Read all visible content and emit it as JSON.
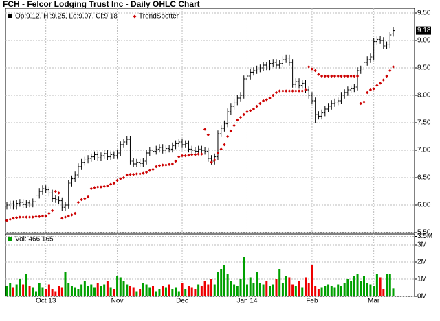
{
  "chart_data": [
    {
      "type": "ohlc",
      "title": "FCH - Felcor Lodging Trust Inc - Daily OHLC Chart",
      "legend": "Op:9.12, Hi:9.25, Lo:9.07, Cl:9.18",
      "color": "#000000",
      "open": [
        5.98,
        6.0,
        6.02,
        5.98,
        6.03,
        6.05,
        6.01,
        6.04,
        6.02,
        6.06,
        6.18,
        6.25,
        6.3,
        6.28,
        6.22,
        6.12,
        6.1,
        6.08,
        5.96,
        6.0,
        6.4,
        6.48,
        6.55,
        6.7,
        6.78,
        6.82,
        6.85,
        6.88,
        6.92,
        6.86,
        6.9,
        6.94,
        6.88,
        6.92,
        6.9,
        6.95,
        7.1,
        7.15,
        7.2,
        6.8,
        6.75,
        6.78,
        6.76,
        6.8,
        6.95,
        7.0,
        6.98,
        7.02,
        7.05,
        7.0,
        7.03,
        7.02,
        7.08,
        7.12,
        7.15,
        7.1,
        7.12,
        7.02,
        7.0,
        6.98,
        7.02,
        7.0,
        6.98,
        6.85,
        6.8,
        6.88,
        7.3,
        7.4,
        7.48,
        7.7,
        7.8,
        7.88,
        7.95,
        8.0,
        8.3,
        8.35,
        8.42,
        8.45,
        8.48,
        8.5,
        8.55,
        8.52,
        8.58,
        8.6,
        8.55,
        8.58,
        8.65,
        8.68,
        8.6,
        8.2,
        8.25,
        8.18,
        8.22,
        8.1,
        8.0,
        7.9,
        7.65,
        7.62,
        7.68,
        7.75,
        7.8,
        7.85,
        7.88,
        7.9,
        8.0,
        8.05,
        8.1,
        8.12,
        8.15,
        8.45,
        8.48,
        8.6,
        8.65,
        8.7,
        8.98,
        9.02,
        9.0,
        8.9,
        8.92,
        9.12
      ],
      "high": [
        6.06,
        6.08,
        6.08,
        6.09,
        6.11,
        6.11,
        6.1,
        6.1,
        6.12,
        6.24,
        6.31,
        6.36,
        6.36,
        6.34,
        6.28,
        6.18,
        6.16,
        6.14,
        6.06,
        6.46,
        6.54,
        6.61,
        6.76,
        6.84,
        6.88,
        6.91,
        6.94,
        6.98,
        6.98,
        6.96,
        7.0,
        7.0,
        6.98,
        6.98,
        7.01,
        7.16,
        7.21,
        7.26,
        7.26,
        6.86,
        6.84,
        6.84,
        6.86,
        7.01,
        7.06,
        7.06,
        7.08,
        7.11,
        7.11,
        7.09,
        7.09,
        7.14,
        7.18,
        7.21,
        7.21,
        7.18,
        7.18,
        7.08,
        7.06,
        7.08,
        7.08,
        7.06,
        7.04,
        6.91,
        6.94,
        7.36,
        7.46,
        7.54,
        7.76,
        7.86,
        7.94,
        8.01,
        8.06,
        8.36,
        8.41,
        8.48,
        8.51,
        8.54,
        8.56,
        8.61,
        8.61,
        8.64,
        8.66,
        8.66,
        8.64,
        8.71,
        8.74,
        8.74,
        8.66,
        8.31,
        8.31,
        8.28,
        8.28,
        8.16,
        8.06,
        7.96,
        7.71,
        7.74,
        7.81,
        7.86,
        7.91,
        7.94,
        7.96,
        8.06,
        8.11,
        8.16,
        8.18,
        8.21,
        8.51,
        8.54,
        8.66,
        8.71,
        8.76,
        9.04,
        9.08,
        9.08,
        9.06,
        8.98,
        9.16,
        9.25
      ],
      "low": [
        5.92,
        5.94,
        5.92,
        5.92,
        5.97,
        5.95,
        5.95,
        5.96,
        5.96,
        6.0,
        6.12,
        6.19,
        6.22,
        6.16,
        6.06,
        6.04,
        6.02,
        5.9,
        5.9,
        5.94,
        6.34,
        6.42,
        6.49,
        6.64,
        6.72,
        6.76,
        6.79,
        6.82,
        6.8,
        6.8,
        6.84,
        6.82,
        6.82,
        6.84,
        6.84,
        6.89,
        7.04,
        7.09,
        6.74,
        6.69,
        6.69,
        6.7,
        6.7,
        6.74,
        6.89,
        6.92,
        6.92,
        6.96,
        6.94,
        6.94,
        6.96,
        6.96,
        7.02,
        7.06,
        7.04,
        7.04,
        6.96,
        6.94,
        6.92,
        6.92,
        6.94,
        6.92,
        6.79,
        6.74,
        6.74,
        6.82,
        7.24,
        7.34,
        7.42,
        7.64,
        7.74,
        7.82,
        7.89,
        7.94,
        8.24,
        8.29,
        8.36,
        8.39,
        8.42,
        8.44,
        8.46,
        8.46,
        8.52,
        8.49,
        8.49,
        8.52,
        8.59,
        8.54,
        8.14,
        8.14,
        8.12,
        8.12,
        8.04,
        7.94,
        7.84,
        7.5,
        7.56,
        7.56,
        7.62,
        7.69,
        7.74,
        7.79,
        7.82,
        7.84,
        7.94,
        7.99,
        8.04,
        8.06,
        8.09,
        8.39,
        8.42,
        8.54,
        8.59,
        8.64,
        8.92,
        8.94,
        8.84,
        8.84,
        8.86,
        9.07
      ],
      "close": [
        6.0,
        6.02,
        5.98,
        6.03,
        6.05,
        6.01,
        6.04,
        6.02,
        6.06,
        6.18,
        6.25,
        6.3,
        6.28,
        6.22,
        6.12,
        6.1,
        6.08,
        5.96,
        6.0,
        6.4,
        6.48,
        6.55,
        6.7,
        6.78,
        6.82,
        6.85,
        6.88,
        6.92,
        6.86,
        6.9,
        6.94,
        6.88,
        6.92,
        6.9,
        6.95,
        7.1,
        7.15,
        7.2,
        6.8,
        6.75,
        6.78,
        6.76,
        6.8,
        6.95,
        7.0,
        6.98,
        7.02,
        7.05,
        7.0,
        7.03,
        7.02,
        7.08,
        7.12,
        7.15,
        7.1,
        7.12,
        7.02,
        7.0,
        6.98,
        7.02,
        7.0,
        6.98,
        6.85,
        6.8,
        6.88,
        7.3,
        7.4,
        7.48,
        7.7,
        7.8,
        7.88,
        7.95,
        8.0,
        8.3,
        8.35,
        8.42,
        8.45,
        8.48,
        8.5,
        8.55,
        8.52,
        8.58,
        8.6,
        8.55,
        8.58,
        8.65,
        8.68,
        8.6,
        8.2,
        8.25,
        8.18,
        8.22,
        8.1,
        8.0,
        7.9,
        7.65,
        7.62,
        7.68,
        7.75,
        7.8,
        7.85,
        7.88,
        7.9,
        8.0,
        8.05,
        8.1,
        8.12,
        8.15,
        8.45,
        8.48,
        8.6,
        8.65,
        8.7,
        8.98,
        9.02,
        9.0,
        8.9,
        8.92,
        9.1,
        9.18
      ],
      "trendspotter": {
        "name": "TrendSpotter",
        "color": "#cc0000",
        "values": [
          5.72,
          5.74,
          5.76,
          5.77,
          5.78,
          5.78,
          5.78,
          5.78,
          5.78,
          5.79,
          5.79,
          5.8,
          5.8,
          5.85,
          5.9,
          6.25,
          6.22,
          5.76,
          5.78,
          5.8,
          5.82,
          5.85,
          6.05,
          6.1,
          6.12,
          6.15,
          6.3,
          6.32,
          6.33,
          6.33,
          6.34,
          6.35,
          6.38,
          6.4,
          6.45,
          6.48,
          6.5,
          6.55,
          6.56,
          6.56,
          6.57,
          6.57,
          6.58,
          6.6,
          6.63,
          6.65,
          6.7,
          6.72,
          6.73,
          6.73,
          6.74,
          6.75,
          6.8,
          6.88,
          6.9,
          6.9,
          6.91,
          6.92,
          6.92,
          6.93,
          6.93,
          7.38,
          7.28,
          6.78,
          6.82,
          6.95,
          7.02,
          7.1,
          7.25,
          7.35,
          7.45,
          7.55,
          7.6,
          7.65,
          7.7,
          7.72,
          7.75,
          7.8,
          7.85,
          7.9,
          7.92,
          7.95,
          8.0,
          8.05,
          8.08,
          8.08,
          8.08,
          8.08,
          8.08,
          8.08,
          8.08,
          8.08,
          8.1,
          8.52,
          8.48,
          8.45,
          8.38,
          8.35,
          8.35,
          8.35,
          8.35,
          8.35,
          8.35,
          8.35,
          8.35,
          8.35,
          8.35,
          8.35,
          8.35,
          7.85,
          7.88,
          8.05,
          8.1,
          8.12,
          8.18,
          8.22,
          8.28,
          8.35,
          8.45,
          8.52
        ]
      },
      "ylim": [
        5.5,
        9.5
      ],
      "yticks": [
        {
          "value": 5.5,
          "label": "5.50"
        },
        {
          "value": 6,
          "label": "6.00"
        },
        {
          "value": 6.5,
          "label": "6.50"
        },
        {
          "value": 7,
          "label": "7.00"
        },
        {
          "value": 7.5,
          "label": "7.50"
        },
        {
          "value": 8,
          "label": "8.00"
        },
        {
          "value": 8.5,
          "label": "8.50"
        },
        {
          "value": 9,
          "label": "9.00"
        },
        {
          "value": 9.5,
          "label": "9.50"
        }
      ],
      "grid": true
    },
    {
      "type": "bar",
      "legend": "Vol: 466,165",
      "up_color": "#00a000",
      "down_color": "#ee0000",
      "categories": [
        null,
        null,
        null,
        null,
        null,
        null,
        null,
        null,
        null,
        null,
        null,
        null,
        "Oct 13",
        null,
        null,
        null,
        null,
        null,
        null,
        null,
        null,
        null,
        null,
        null,
        null,
        null,
        null,
        null,
        null,
        null,
        null,
        null,
        null,
        null,
        "Nov",
        null,
        null,
        null,
        null,
        null,
        null,
        null,
        null,
        null,
        null,
        null,
        null,
        null,
        null,
        null,
        null,
        null,
        null,
        null,
        "Dec",
        null,
        null,
        null,
        null,
        null,
        null,
        null,
        null,
        null,
        null,
        null,
        null,
        null,
        null,
        null,
        null,
        null,
        null,
        null,
        "Jan 14",
        null,
        null,
        null,
        null,
        null,
        null,
        null,
        null,
        null,
        null,
        null,
        null,
        null,
        null,
        null,
        null,
        null,
        null,
        null,
        "Feb",
        null,
        null,
        null,
        null,
        null,
        null,
        null,
        null,
        null,
        null,
        null,
        null,
        null,
        null,
        null,
        null,
        null,
        null,
        "Mar",
        null,
        null,
        null,
        null,
        null,
        null
      ],
      "values": [
        600000,
        800000,
        500000,
        700000,
        1000000,
        700000,
        1300000,
        600000,
        500000,
        300000,
        800000,
        500000,
        400000,
        700000,
        400000,
        300000,
        600000,
        500000,
        1400000,
        800000,
        600000,
        500000,
        400000,
        700000,
        900000,
        600000,
        700000,
        500000,
        800000,
        600000,
        700000,
        900000,
        500000,
        400000,
        1200000,
        1100000,
        900000,
        700000,
        600000,
        500000,
        300000,
        400000,
        800000,
        700000,
        500000,
        600000,
        300000,
        400000,
        600000,
        500000,
        700000,
        400000,
        500000,
        300000,
        800000,
        400000,
        600000,
        500000,
        400000,
        700000,
        600000,
        900000,
        700000,
        1000000,
        700000,
        1400000,
        1600000,
        1800000,
        1300000,
        900000,
        700000,
        600000,
        1000000,
        2300000,
        700000,
        1100000,
        800000,
        1400000,
        800000,
        700000,
        900000,
        600000,
        700000,
        1000000,
        1600000,
        800000,
        1200000,
        1100000,
        700000,
        600000,
        900000,
        500000,
        1100000,
        800000,
        1800000,
        600000,
        400000,
        500000,
        600000,
        700000,
        600000,
        500000,
        700000,
        600000,
        800000,
        1000000,
        900000,
        1200000,
        1300000,
        900000,
        1200000,
        800000,
        700000,
        600000,
        1300000,
        1100000,
        400000,
        1300000,
        1300000,
        466165
      ],
      "ylim": [
        0,
        3500000
      ],
      "yticks": [
        {
          "value": 0,
          "label": "0M"
        },
        {
          "value": 1000000,
          "label": "1M"
        },
        {
          "value": 2000000,
          "label": "2M"
        },
        {
          "value": 3000000,
          "label": "3M"
        },
        {
          "value": 3500000,
          "label": "3.5M"
        }
      ],
      "grid": true
    }
  ]
}
